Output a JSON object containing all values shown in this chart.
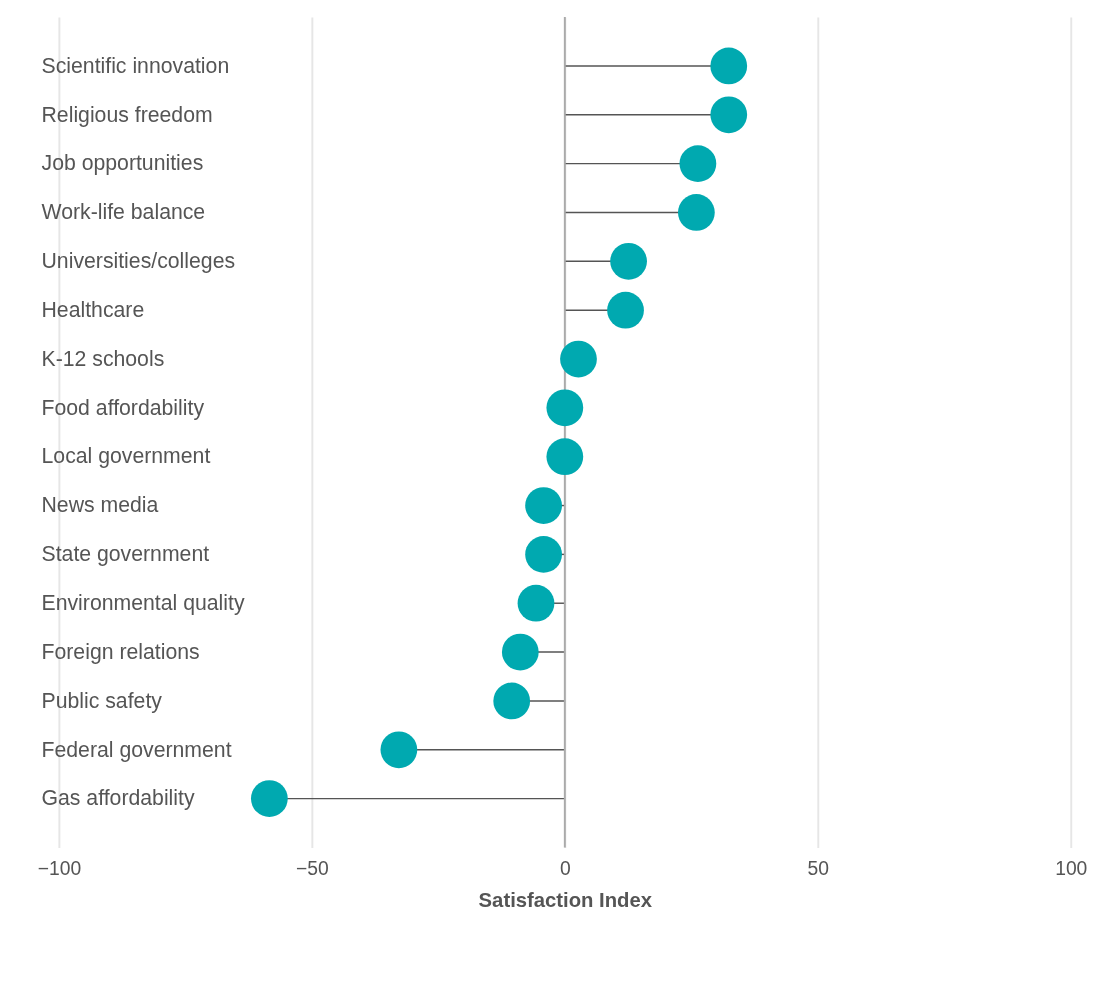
{
  "chart_data": {
    "type": "lollipop",
    "orientation": "horizontal",
    "xlabel": "Satisfaction Index",
    "categories": [
      "Scientific innovation",
      "Religious freedom",
      "Job opportunities",
      "Work-life balance",
      "Universities/colleges",
      "Healthcare",
      "K-12 schools",
      "Food affordability",
      "Local government",
      "News media",
      "State government",
      "Environmental quality",
      "Foreign relations",
      "Public safety",
      "Federal government",
      "Gas affordability"
    ],
    "values": [
      32.4,
      32.4,
      26.3,
      26,
      12.6,
      12,
      2.7,
      0,
      0,
      -4.2,
      -4.2,
      -5.7,
      -8.8,
      -10.5,
      -32.8,
      -58.4
    ],
    "color": "#00a9b0",
    "xlim": [
      -100,
      100
    ],
    "xticks": [
      -100,
      -50,
      0,
      50,
      100
    ],
    "ref_lines": [
      {
        "axis": "x",
        "value": 0,
        "color": "#aaaaaa"
      }
    ],
    "grid": "x",
    "marker": "circle"
  }
}
